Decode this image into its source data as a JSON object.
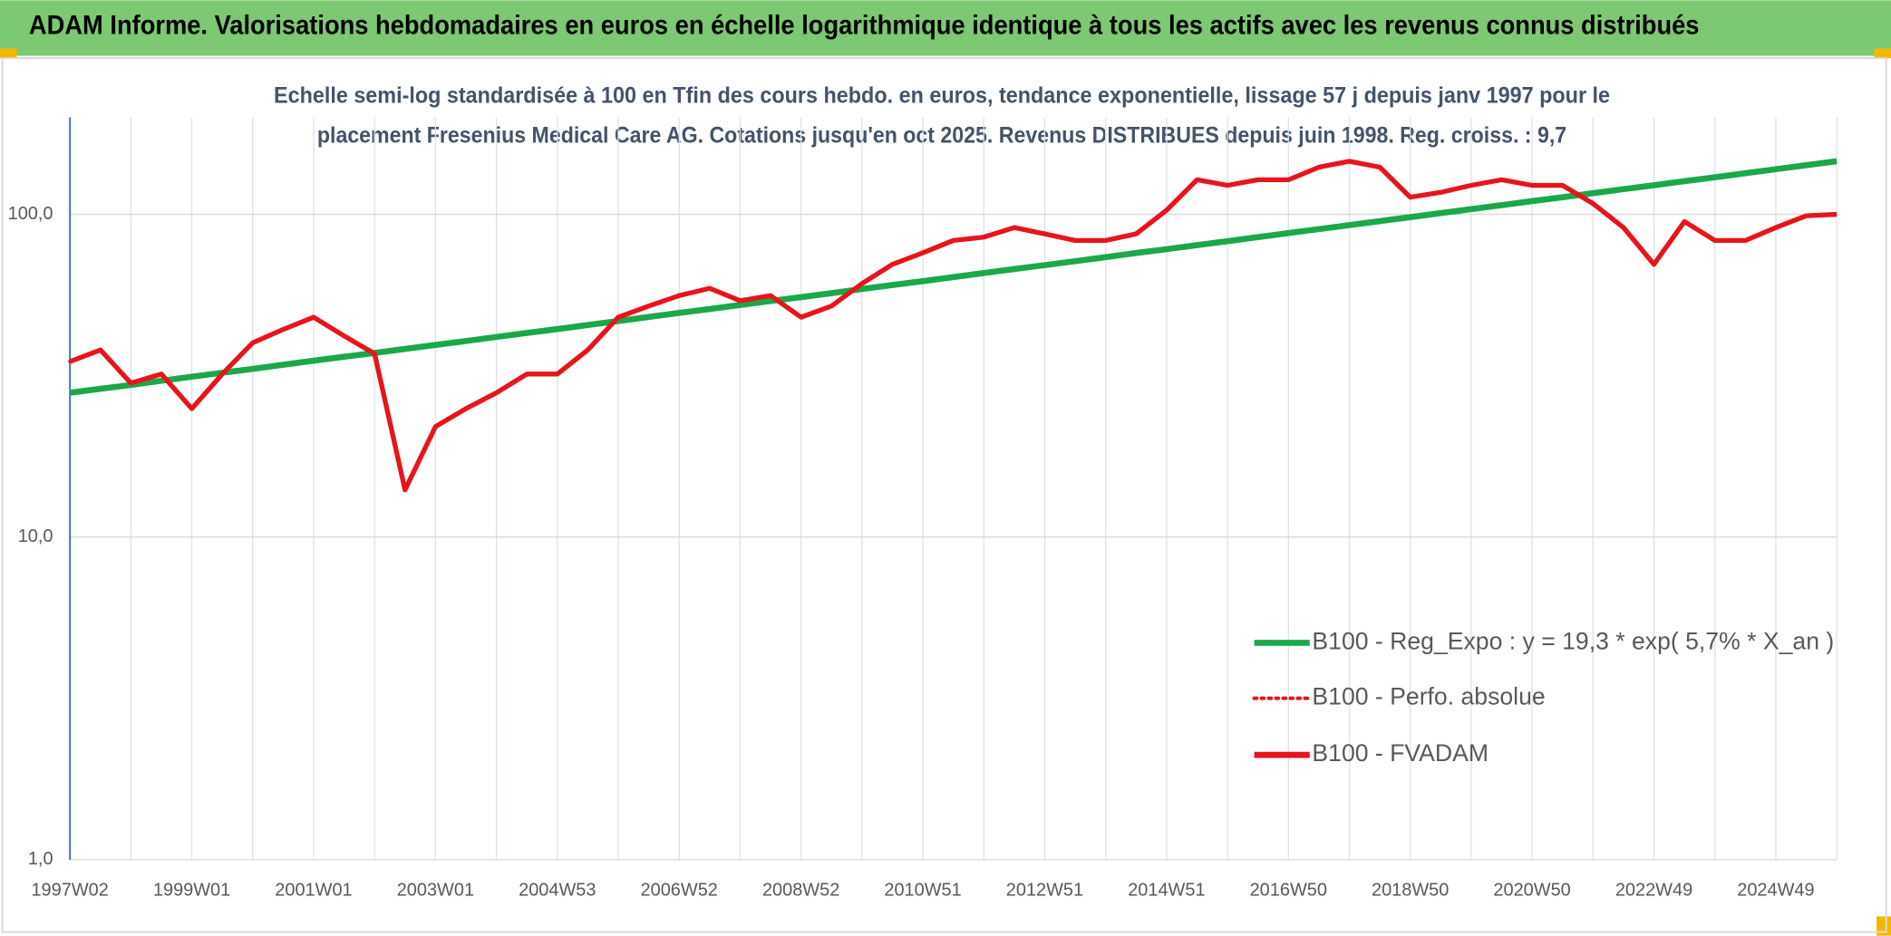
{
  "chart_data": {
    "type": "line",
    "title": "ADAM Informe. Valorisations hebdomadaires en euros en échelle logarithmique identique à tous les actifs avec les revenus connus distribués",
    "subtitle": [
      "Echelle semi-log standardisée à 100 en Tfin des cours hebdo. en euros, tendance exponentielle, lissage 57 j depuis janv 1997 pour le",
      "placement Fresenius Medical Care AG. Cotations jusqu'en oct 2025. Revenus DISTRIBUES depuis juin 1998. Reg. croiss. : 9,7"
    ],
    "categories": [
      "1997W02",
      null,
      null,
      null,
      "1999W01",
      null,
      null,
      null,
      "2001W01",
      null,
      null,
      null,
      "2003W01",
      null,
      null,
      null,
      "2004W53",
      null,
      null,
      null,
      "2006W52",
      null,
      null,
      null,
      "2008W52",
      null,
      null,
      null,
      "2010W51",
      null,
      null,
      null,
      "2012W51",
      null,
      null,
      null,
      "2014W51",
      null,
      null,
      null,
      "2016W50",
      null,
      null,
      null,
      "2018W50",
      null,
      null,
      null,
      "2020W50",
      null,
      null,
      null,
      "2022W49",
      null,
      null,
      null,
      "2024W49",
      null,
      null
    ],
    "log_scale": true,
    "ylim": [
      1,
      200
    ],
    "yticks": [
      {
        "value": 1,
        "label": "1,0"
      },
      {
        "value": 10,
        "label": "10,0"
      },
      {
        "value": 100,
        "label": "100,0"
      }
    ],
    "grid": true,
    "legend": "lower right",
    "series": [
      {
        "name": "B100 - Reg_Expo : y = 19,3 * exp( 5,7% *  X_an )",
        "color": "#1aa84a",
        "style": "solid",
        "values": [
          28.0,
          28.8,
          29.6,
          30.5,
          31.4,
          32.3,
          33.2,
          34.2,
          35.2,
          36.2,
          37.2,
          38.3,
          39.4,
          40.5,
          41.7,
          42.9,
          44.1,
          45.4,
          46.7,
          48.1,
          49.5,
          50.9,
          52.4,
          53.9,
          55.4,
          57.0,
          58.7,
          60.4,
          62.1,
          63.9,
          65.8,
          67.7,
          69.6,
          71.6,
          73.7,
          75.9,
          78.0,
          80.3,
          82.6,
          85.0,
          87.5,
          90.0,
          92.6,
          95.3,
          98.0,
          100.9,
          103.8,
          106.8,
          109.9,
          113.0,
          116.3,
          119.7,
          123.1,
          126.7,
          130.3,
          134.1,
          138.0,
          142.0,
          146.1
        ]
      },
      {
        "name": "B100 - Perfo. absolue",
        "color": "#e8141c",
        "style": "dotted",
        "values": [
          35,
          38,
          30,
          32,
          25,
          32,
          40,
          44,
          48,
          42,
          37,
          14,
          22,
          25,
          28,
          32,
          32,
          38,
          48,
          52,
          56,
          59,
          54,
          56,
          48,
          52,
          61,
          70,
          76,
          83,
          85,
          91,
          87,
          83,
          83,
          87,
          103,
          128,
          123,
          128,
          128,
          140,
          146,
          140,
          113,
          117,
          123,
          128,
          123,
          123,
          108,
          91,
          70,
          95,
          83,
          83,
          91,
          99,
          100
        ]
      },
      {
        "name": "B100 - FVADAM",
        "color": "#e8141c",
        "style": "solid",
        "values": [
          35,
          38,
          30,
          32,
          25,
          32,
          40,
          44,
          48,
          42,
          37,
          14,
          22,
          25,
          28,
          32,
          32,
          38,
          48,
          52,
          56,
          59,
          54,
          56,
          48,
          52,
          61,
          70,
          76,
          83,
          85,
          91,
          87,
          83,
          83,
          87,
          103,
          128,
          123,
          128,
          128,
          140,
          146,
          140,
          113,
          117,
          123,
          128,
          123,
          123,
          108,
          91,
          70,
          95,
          83,
          83,
          91,
          99,
          100
        ]
      }
    ]
  }
}
